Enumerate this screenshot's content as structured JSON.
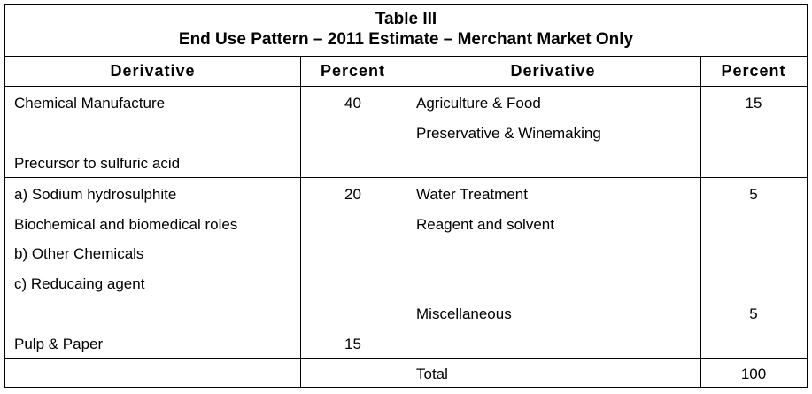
{
  "table": {
    "title": "Table III",
    "subtitle": "End Use Pattern – 2011 Estimate – Merchant Market Only",
    "headers": {
      "derivative_left": "Derivative",
      "percent_left": "Percent",
      "derivative_right": "Derivative",
      "percent_right": "Percent"
    },
    "rows": [
      {
        "left_lines": [
          "Chemical Manufacture",
          "",
          "Precursor to sulfuric acid"
        ],
        "left_percent": "40",
        "right_lines": [
          "Agriculture & Food",
          "Preservative & Winemaking"
        ],
        "right_percent": "15"
      },
      {
        "left_lines": [
          "a) Sodium hydrosulphite",
          "Biochemical and biomedical roles",
          "b) Other Chemicals",
          "c) Reducaing agent"
        ],
        "left_percent": "20",
        "right_lines": [
          "Water Treatment",
          "Reagent and solvent"
        ],
        "right_percent": "5",
        "right_extra": "Miscellaneous",
        "right_extra_percent": "5"
      },
      {
        "left_lines": [
          "Pulp & Paper"
        ],
        "left_percent": "15",
        "right_lines": [
          ""
        ],
        "right_percent": ""
      },
      {
        "left_lines": [
          ""
        ],
        "left_percent": "",
        "right_lines": [
          "Total"
        ],
        "right_percent": "100"
      }
    ]
  }
}
